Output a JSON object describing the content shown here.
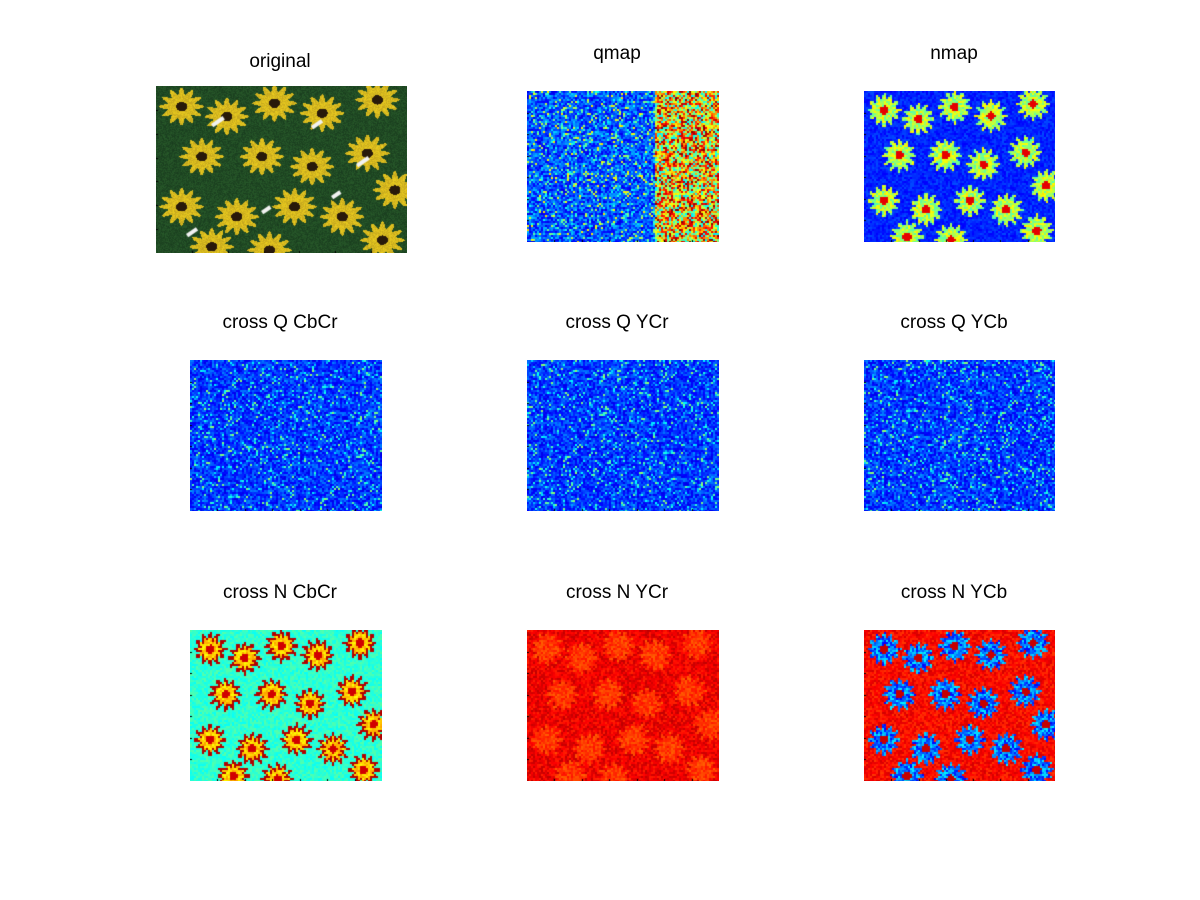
{
  "figure": {
    "colormap": "jet",
    "panels": [
      {
        "key": "original",
        "title": "original",
        "kind": "photo"
      },
      {
        "key": "qmap",
        "title": "qmap",
        "kind": "map"
      },
      {
        "key": "nmap",
        "title": "nmap",
        "kind": "map"
      },
      {
        "key": "cross_q_cbcr",
        "title": "cross Q CbCr",
        "kind": "map"
      },
      {
        "key": "cross_q_ycr",
        "title": "cross Q YCr",
        "kind": "map"
      },
      {
        "key": "cross_q_ycb",
        "title": "cross Q YCb",
        "kind": "map"
      },
      {
        "key": "cross_n_cbcr",
        "title": "cross N CbCr",
        "kind": "map"
      },
      {
        "key": "cross_n_ycr",
        "title": "cross N YCr",
        "kind": "map"
      },
      {
        "key": "cross_n_ycb",
        "title": "cross N YCb",
        "kind": "map"
      }
    ]
  }
}
